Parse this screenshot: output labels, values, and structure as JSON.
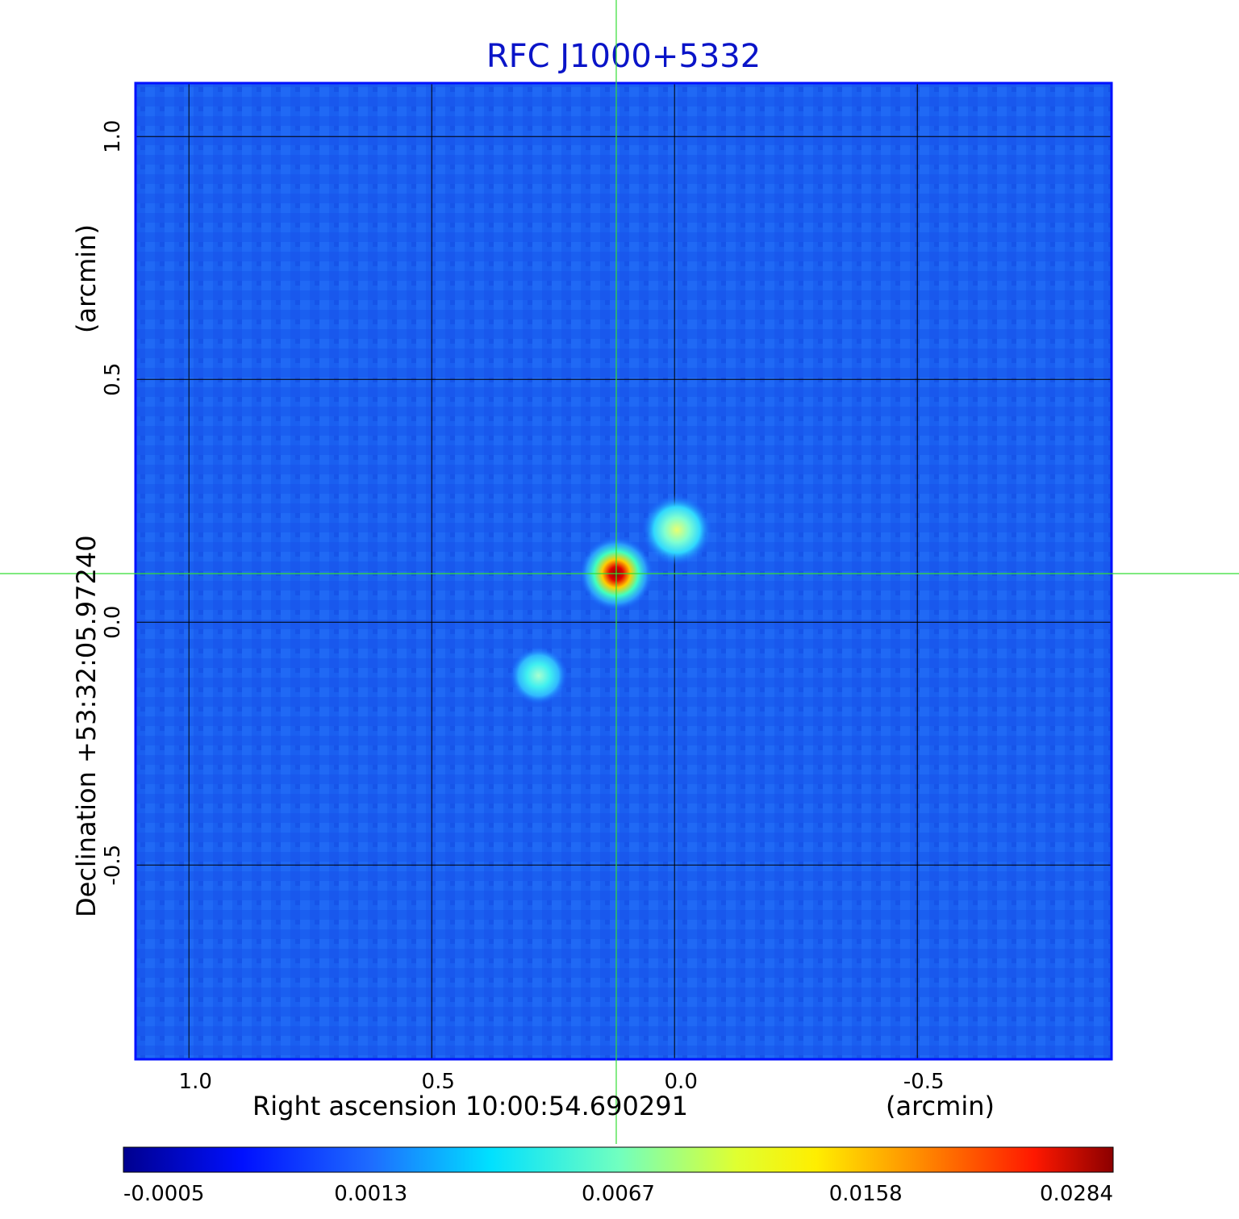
{
  "chart_data": {
    "type": "heatmap",
    "title": "RFC J1000+5332",
    "xlabel": "Right ascension  10:00:54.690291",
    "xunit": "(arcmin)",
    "ylabel": "Declination  +53:32:05.97240",
    "yunit": "(arcmin)",
    "x_axis_reversed": true,
    "xlim": [
      1.11,
      -0.9
    ],
    "ylim": [
      -0.9,
      1.11
    ],
    "xticks": [
      {
        "value": 1.0,
        "label": "1.0"
      },
      {
        "value": 0.5,
        "label": "0.5"
      },
      {
        "value": 0.0,
        "label": "0.0"
      },
      {
        "value": -0.5,
        "label": "-0.5"
      }
    ],
    "yticks": [
      {
        "value": 1.0,
        "label": "1.0"
      },
      {
        "value": 0.5,
        "label": "0.5"
      },
      {
        "value": 0.0,
        "label": "0.0"
      },
      {
        "value": -0.5,
        "label": "-0.5"
      }
    ],
    "grid": true,
    "crosshair": {
      "x": 0.12,
      "y": 0.1,
      "color": "#33dd33"
    },
    "sources": [
      {
        "x": 0.12,
        "y": 0.1,
        "peak": 0.0284
      },
      {
        "x": -0.005,
        "y": 0.19,
        "peak": 0.006
      },
      {
        "x": 0.28,
        "y": -0.11,
        "peak": 0.0045
      }
    ],
    "colormap": "jet",
    "colorbar_ticks": [
      "-0.0005",
      "0.0013",
      "0.0067",
      "0.0158",
      "0.0284"
    ]
  }
}
